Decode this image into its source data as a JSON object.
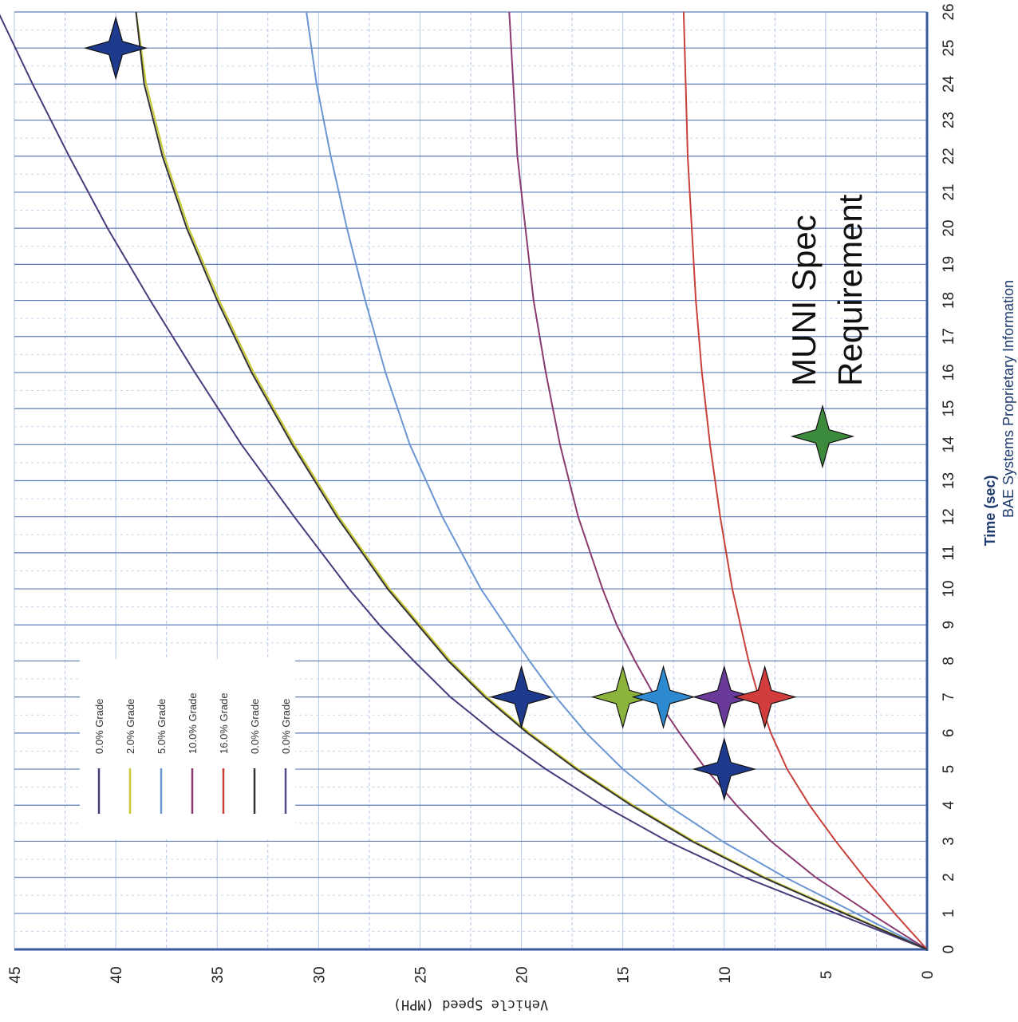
{
  "chart_data": {
    "type": "line",
    "orientation": "rotated-90-clockwise",
    "xlabel": "Time (sec)",
    "ylabel": "Vehicle Speed (MPH)",
    "footer": "BAE Systems Proprietary Information",
    "xlim": [
      0,
      26
    ],
    "ylim": [
      0,
      45
    ],
    "x_ticks": [
      0,
      1,
      2,
      3,
      4,
      5,
      6,
      7,
      8,
      9,
      10,
      11,
      12,
      13,
      14,
      15,
      16,
      17,
      18,
      19,
      20,
      21,
      22,
      23,
      24,
      25,
      26
    ],
    "y_ticks": [
      0,
      5,
      10,
      15,
      20,
      25,
      30,
      35,
      40,
      45
    ],
    "grid": true,
    "legend_position": "bottom-left",
    "series": [
      {
        "name": "0.0% Grade",
        "color": "#4a3a7a",
        "x": [
          0,
          1,
          2,
          3,
          4,
          5,
          6,
          7,
          8,
          9,
          10,
          12,
          14,
          16,
          18,
          20,
          22,
          24,
          26
        ],
        "y": [
          0,
          4.5,
          9,
          12.8,
          16,
          18.8,
          21.3,
          23.5,
          25.3,
          27,
          28.5,
          31.2,
          33.8,
          36.1,
          38.3,
          40.4,
          42.3,
          44.1,
          45.8
        ]
      },
      {
        "name": "2.0% Grade",
        "color": "#c8c832",
        "x": [
          0,
          1,
          2,
          3,
          4,
          5,
          6,
          7,
          8,
          9,
          10,
          12,
          14,
          16,
          18,
          20,
          22,
          24,
          26
        ],
        "y": [
          0,
          4,
          8,
          11.5,
          14.5,
          17.2,
          19.6,
          21.7,
          23.5,
          25,
          26.5,
          29,
          31.2,
          33.2,
          34.9,
          36.4,
          37.6,
          38.5,
          39
        ]
      },
      {
        "name": "5.0% Grade",
        "color": "#6a96d2",
        "x": [
          0,
          1,
          2,
          3,
          4,
          5,
          6,
          7,
          8,
          9,
          10,
          12,
          14,
          16,
          18,
          20,
          22,
          24,
          26
        ],
        "y": [
          0,
          3.5,
          7,
          10.1,
          12.8,
          15,
          16.8,
          18.3,
          19.6,
          20.8,
          22,
          23.9,
          25.5,
          26.7,
          27.7,
          28.6,
          29.4,
          30.1,
          30.6
        ]
      },
      {
        "name": "10.0% Grade",
        "color": "#8a3a6e",
        "x": [
          0,
          1,
          2,
          3,
          4,
          5,
          6,
          7,
          8,
          9,
          10,
          12,
          14,
          16,
          18,
          20,
          22,
          24,
          26
        ],
        "y": [
          0,
          2.8,
          5.5,
          7.7,
          9.4,
          10.9,
          12.2,
          13.4,
          14.4,
          15.3,
          16,
          17.2,
          18.1,
          18.8,
          19.4,
          19.8,
          20.2,
          20.4,
          20.6
        ]
      },
      {
        "name": "16.0% Grade",
        "color": "#c8403a",
        "x": [
          0,
          1,
          2,
          3,
          4,
          5,
          6,
          7,
          8,
          9,
          10,
          12,
          14,
          16,
          18,
          20,
          22,
          24,
          26
        ],
        "y": [
          0,
          1.6,
          3.1,
          4.5,
          5.8,
          6.9,
          7.7,
          8.3,
          8.8,
          9.2,
          9.6,
          10.2,
          10.7,
          11.1,
          11.4,
          11.6,
          11.8,
          11.9,
          12
        ]
      },
      {
        "name": "0.0% Grade",
        "color": "#333333",
        "x": [
          0,
          1,
          2,
          3,
          4,
          5,
          6,
          7,
          8,
          9,
          10,
          12,
          14,
          16,
          18,
          20,
          22,
          24,
          26
        ],
        "y": [
          0,
          4.1,
          8.1,
          11.6,
          14.6,
          17.3,
          19.7,
          21.8,
          23.6,
          25.1,
          26.6,
          29.1,
          31.3,
          33.3,
          35,
          36.5,
          37.7,
          38.6,
          39
        ]
      },
      {
        "name": "0.0% Grade",
        "color": "#5a4a8a",
        "x": [],
        "y": []
      }
    ],
    "spec_points": [
      {
        "x": 7,
        "y": 20,
        "color": "#1e3a8c"
      },
      {
        "x": 7,
        "y": 15,
        "color": "#8cb43c"
      },
      {
        "x": 7,
        "y": 13,
        "color": "#2e8ad0"
      },
      {
        "x": 7,
        "y": 10,
        "color": "#6a3a9a"
      },
      {
        "x": 7,
        "y": 8,
        "color": "#d23c3c"
      },
      {
        "x": 5,
        "y": 10,
        "color": "#1e3a8c"
      },
      {
        "x": 25,
        "y": 40,
        "color": "#1e3a8c"
      }
    ],
    "annotation": {
      "marker_color": "#3c8a3c",
      "text_line1": "MUNI Spec",
      "text_line2": "Requirement"
    }
  }
}
